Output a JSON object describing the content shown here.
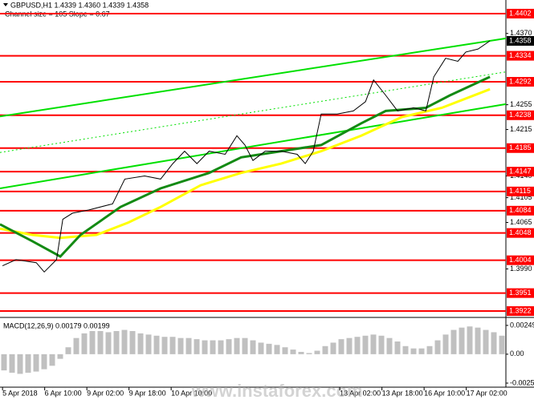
{
  "watermark": "www.instaforex.com",
  "chart_data": [
    {
      "type": "line",
      "title": "GBPUSD,H1  1.4339 1.4360 1.4339 1.4358",
      "subtitle": "Channel size = 105 Slope = 0.67",
      "xlim": [
        -0.06,
        11.94
      ],
      "xticks": [
        {
          "value": 0,
          "label": "5 Apr 2018"
        },
        {
          "value": 1,
          "label": "6 Apr 10:00"
        },
        {
          "value": 2,
          "label": "9 Apr 02:00"
        },
        {
          "value": 3,
          "label": "9 Apr 18:00"
        },
        {
          "value": 4,
          "label": "10 Apr 10:00"
        },
        {
          "value": 8,
          "label": "13 Apr 02:00"
        },
        {
          "value": 9,
          "label": "13 Apr 18:00"
        },
        {
          "value": 10,
          "label": "16 Apr 10:00"
        },
        {
          "value": 11,
          "label": "17 Apr 02:00"
        }
      ],
      "ylim": [
        1.3913,
        1.4424
      ],
      "yticks": [
        {
          "value": 1.437,
          "label": "1.4370"
        },
        1.4255,
        1.4215,
        {
          "value": 1.414,
          "label": "1.4140"
        },
        1.4105,
        1.4065,
        {
          "value": 1.399,
          "label": "1.3990"
        }
      ],
      "levels": [
        1.4402,
        1.4334,
        1.4292,
        1.4238,
        1.4185,
        1.4147,
        1.4115,
        1.4084,
        1.4048,
        1.4004,
        1.3951,
        1.3922
      ],
      "level_color": "#ff0000",
      "last_price": 1.4358,
      "series": [
        {
          "color": "#00e000",
          "width": 2,
          "x": [
            -0.06,
            11.94
          ],
          "values": [
            1.4236,
            1.4362
          ]
        },
        {
          "color": "#00e000",
          "width": 2,
          "x": [
            -0.06,
            11.94
          ],
          "values": [
            1.412,
            1.4256
          ]
        },
        {
          "color": "#00e000",
          "width": 1,
          "dash": true,
          "x": [
            -0.06,
            11.94
          ],
          "values": [
            1.4178,
            1.4308
          ]
        },
        {
          "color": "#ffff00",
          "width": 3,
          "x": [
            -0.06,
            0.7,
            1.37,
            2.23,
            2.99,
            3.75,
            4.7,
            5.66,
            6.61,
            7.56,
            8.51,
            9.47,
            10.42,
            11.56
          ],
          "values": [
            1.4055,
            1.4045,
            1.404,
            1.4045,
            1.4065,
            1.409,
            1.4125,
            1.4145,
            1.416,
            1.418,
            1.4205,
            1.4235,
            1.425,
            1.428
          ]
        },
        {
          "color": "#138a13",
          "width": 3,
          "x": [
            -0.06,
            0.7,
            1.37,
            1.85,
            2.8,
            3.75,
            4.9,
            5.66,
            6.61,
            7.56,
            8.51,
            9.09,
            10.04,
            10.61,
            11.56
          ],
          "values": [
            1.4062,
            1.4035,
            1.401,
            1.4045,
            1.409,
            1.412,
            1.4145,
            1.417,
            1.418,
            1.419,
            1.4225,
            1.4245,
            1.425,
            1.427,
            1.43
          ]
        },
        {
          "color": "#000000",
          "width": 1,
          "x": [
            0,
            0.32,
            0.8,
            0.99,
            1.28,
            1.43,
            1.66,
            2.04,
            2.61,
            2.9,
            3.37,
            3.75,
            4.04,
            4.32,
            4.61,
            4.9,
            5.28,
            5.56,
            5.75,
            5.94,
            6.23,
            6.61,
            6.99,
            7.18,
            7.37,
            7.56,
            7.94,
            8.32,
            8.61,
            8.8,
            9.09,
            9.37,
            9.75,
            10.04,
            10.23,
            10.51,
            10.8,
            10.99,
            11.28,
            11.56
          ],
          "values": [
            1.3995,
            1.4005,
            1.4,
            1.3985,
            1.4005,
            1.407,
            1.408,
            1.4085,
            1.4095,
            1.4135,
            1.414,
            1.4135,
            1.416,
            1.418,
            1.416,
            1.418,
            1.4175,
            1.4205,
            1.419,
            1.4165,
            1.418,
            1.418,
            1.4175,
            1.416,
            1.418,
            1.424,
            1.424,
            1.4245,
            1.426,
            1.4295,
            1.427,
            1.4245,
            1.425,
            1.4245,
            1.43,
            1.433,
            1.4325,
            1.434,
            1.4345,
            1.4358
          ]
        }
      ]
    },
    {
      "type": "bar",
      "title": "MACD(12,26,9) 0.00179 0.00199",
      "color": "#c0c0c0",
      "ylim": [
        -0.00285,
        0.00304
      ],
      "yticks": [
        0.00249,
        {
          "value": 0,
          "label": "0.00"
        },
        -0.0025
      ],
      "categories": [
        null,
        null,
        null,
        null,
        null,
        null,
        null,
        null,
        null,
        null,
        null,
        null,
        null,
        null,
        null,
        null,
        null,
        null,
        null,
        null,
        null,
        null,
        null,
        null,
        null,
        null,
        null,
        null,
        null,
        null,
        null,
        null,
        null,
        null,
        null,
        null,
        null,
        null,
        null,
        null,
        null,
        null,
        null,
        null,
        null,
        null,
        null,
        null,
        null,
        null,
        null,
        null,
        null,
        null,
        null,
        null,
        null,
        null,
        null,
        null,
        null,
        null,
        null
      ],
      "values": [
        -0.0014,
        -0.0016,
        -0.0017,
        -0.0016,
        -0.0015,
        -0.0013,
        -0.001,
        -0.0004,
        0.0006,
        0.0014,
        0.0018,
        0.002,
        0.002,
        0.0019,
        0.002,
        0.0021,
        0.002,
        0.0018,
        0.0017,
        0.0016,
        0.0015,
        0.0015,
        0.0014,
        0.0014,
        0.0013,
        0.0012,
        0.0012,
        0.0012,
        0.0013,
        0.0014,
        0.0014,
        0.0012,
        0.001,
        0.0009,
        0.0008,
        0.0006,
        0.0004,
        0.0002,
        0.0001,
        0.0003,
        0.0007,
        0.001,
        0.0013,
        0.0014,
        0.0015,
        0.0016,
        0.0017,
        0.0016,
        0.0014,
        0.0011,
        0.0007,
        0.0005,
        0.0005,
        0.0007,
        0.0012,
        0.0017,
        0.0021,
        0.0023,
        0.0024,
        0.0023,
        0.0021,
        0.0019,
        0.0016
      ]
    }
  ]
}
